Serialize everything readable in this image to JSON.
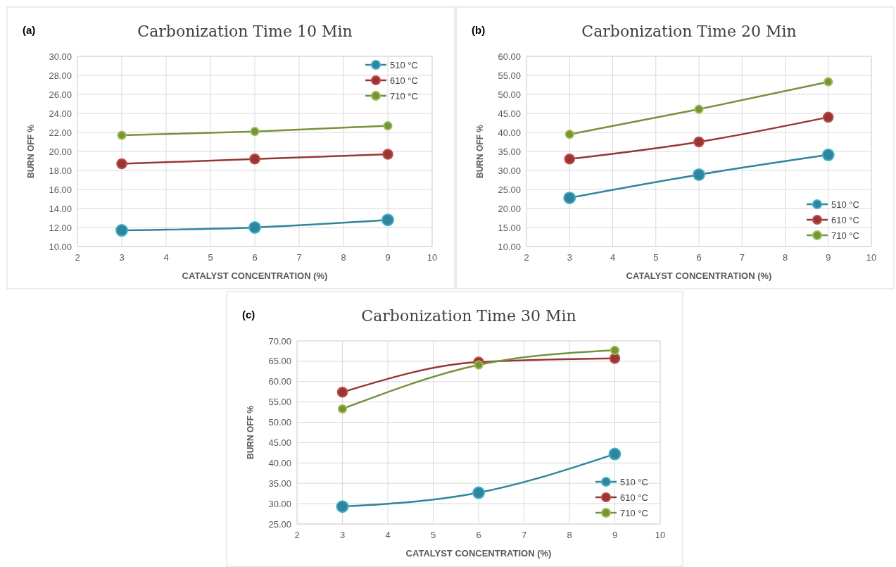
{
  "chart_data": [
    {
      "type": "line",
      "title": "Carbonization Time 10 Min",
      "xlabel": "CATALYST CONCENTRATION (%)",
      "ylabel": "BURN OFF %",
      "annotations": [
        "(a)"
      ],
      "x": [
        3,
        6,
        9
      ],
      "xlim": [
        2,
        10
      ],
      "xticks": [
        2,
        3,
        4,
        5,
        6,
        7,
        8,
        9,
        10
      ],
      "ylim": [
        10,
        30
      ],
      "yticks": [
        {
          "value": 10,
          "label": "10.00"
        },
        {
          "value": 12,
          "label": "12.00"
        },
        {
          "value": 14,
          "label": "14.00"
        },
        {
          "value": 16,
          "label": "16.00"
        },
        {
          "value": 18,
          "label": "18.00"
        },
        {
          "value": 20,
          "label": "20.00"
        },
        {
          "value": 22,
          "label": "22.00"
        },
        {
          "value": 24,
          "label": "24.00"
        },
        {
          "value": 26,
          "label": "26.00"
        },
        {
          "value": 28,
          "label": "28.00"
        },
        {
          "value": 30,
          "label": "30.00"
        }
      ],
      "grid": true,
      "legend": "top right",
      "marker": "circle",
      "line_style": "solid",
      "series": [
        {
          "name": "510 °C",
          "color": "#31849b",
          "values": [
            11.7,
            12.0,
            12.8
          ]
        },
        {
          "name": "610 °C",
          "color": "#953735",
          "values": [
            18.7,
            19.2,
            19.7
          ]
        },
        {
          "name": "710 °C",
          "color": "#76923c",
          "values": [
            21.7,
            22.1,
            22.7
          ]
        }
      ]
    },
    {
      "type": "line",
      "title": "Carbonization Time 20 Min",
      "xlabel": "CATALYST CONCENTRATION  (%)",
      "ylabel": "BURN OFF %",
      "annotations": [
        "(b)"
      ],
      "x": [
        3,
        6,
        9
      ],
      "xlim": [
        2,
        10
      ],
      "xticks": [
        2,
        3,
        4,
        5,
        6,
        7,
        8,
        9,
        10
      ],
      "ylim": [
        10,
        60
      ],
      "yticks": [
        {
          "value": 10,
          "label": "10.00"
        },
        {
          "value": 15,
          "label": "15.00"
        },
        {
          "value": 20,
          "label": "20.00"
        },
        {
          "value": 25,
          "label": "25.00"
        },
        {
          "value": 30,
          "label": "30.00"
        },
        {
          "value": 35,
          "label": "35.00"
        },
        {
          "value": 40,
          "label": "40.00"
        },
        {
          "value": 45,
          "label": "45.00"
        },
        {
          "value": 50,
          "label": "50.00"
        },
        {
          "value": 55,
          "label": "55.00"
        },
        {
          "value": 60,
          "label": "60.00"
        }
      ],
      "grid": true,
      "legend": "bottom right",
      "marker": "circle",
      "line_style": "solid",
      "series": [
        {
          "name": "510 °C",
          "color": "#31849b",
          "values": [
            22.8,
            28.9,
            34.1
          ]
        },
        {
          "name": "610 °C",
          "color": "#953735",
          "values": [
            33.0,
            37.5,
            44.0
          ]
        },
        {
          "name": "710 °C",
          "color": "#76923c",
          "values": [
            39.5,
            46.1,
            53.3
          ]
        }
      ]
    },
    {
      "type": "line",
      "title": "Carbonization Time 30 Min",
      "xlabel": "CATALYST CONCENTRATION (%)",
      "ylabel": "BURN OFF %",
      "annotations": [
        "(c)"
      ],
      "x": [
        3,
        6,
        9
      ],
      "xlim": [
        2,
        10
      ],
      "xticks": [
        2,
        3,
        4,
        5,
        6,
        7,
        8,
        9,
        10
      ],
      "ylim": [
        25,
        70
      ],
      "yticks": [
        {
          "value": 25,
          "label": "25.00"
        },
        {
          "value": 30,
          "label": "30.00"
        },
        {
          "value": 35,
          "label": "35.00"
        },
        {
          "value": 40,
          "label": "40.00"
        },
        {
          "value": 45,
          "label": "45.00"
        },
        {
          "value": 50,
          "label": "50.00"
        },
        {
          "value": 55,
          "label": "55.00"
        },
        {
          "value": 60,
          "label": "60.00"
        },
        {
          "value": 65,
          "label": "65.00"
        },
        {
          "value": 70,
          "label": "70.00"
        }
      ],
      "grid": true,
      "legend": "bottom right",
      "marker": "circle",
      "line_style": "solid",
      "series": [
        {
          "name": "510 °C",
          "color": "#31849b",
          "values": [
            29.3,
            32.7,
            42.2
          ]
        },
        {
          "name": "610 °C",
          "color": "#953735",
          "values": [
            57.4,
            64.8,
            65.7
          ]
        },
        {
          "name": "710 °C",
          "color": "#76923c",
          "values": [
            53.3,
            64.1,
            67.7
          ]
        }
      ]
    }
  ]
}
